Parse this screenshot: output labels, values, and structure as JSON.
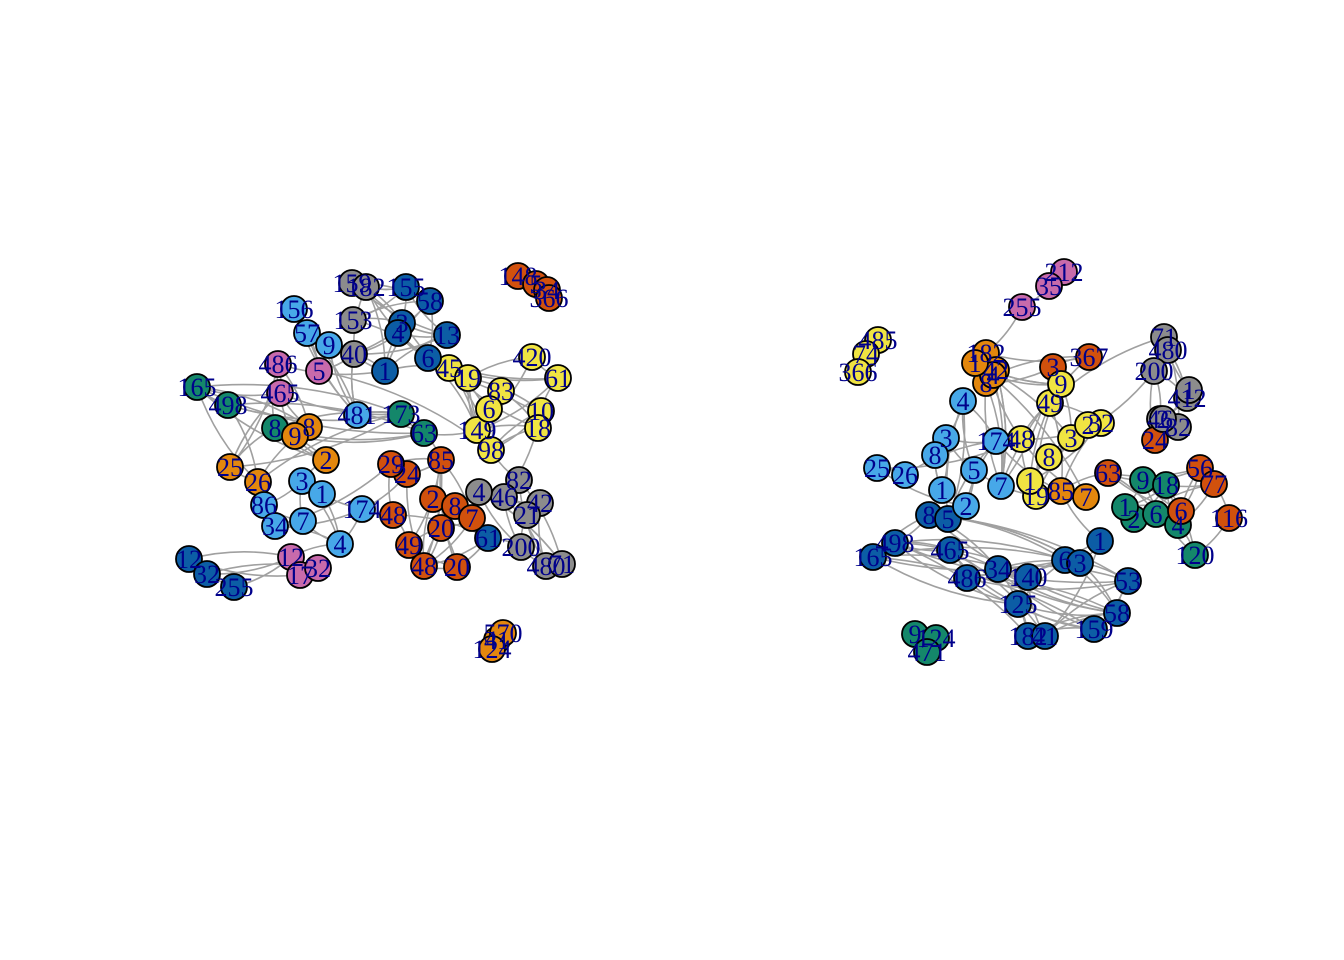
{
  "palette": {
    "dark-blue": "#0c5da5",
    "light-blue": "#47a8e8",
    "gray": "#8c8c8c",
    "orange": "#e3870d",
    "vermilion": "#d1510d",
    "yellow": "#f0e442",
    "green": "#14876a",
    "pink": "#c86aab",
    "edge": "#a0a0a0",
    "label": "#00008b"
  },
  "graphs": [
    {
      "name": "left-network",
      "nodes": [
        {
          "label": "159",
          "color": "gray"
        },
        {
          "label": "182",
          "color": "gray"
        },
        {
          "label": "155",
          "color": "dark-blue"
        },
        {
          "label": "58",
          "color": "dark-blue"
        },
        {
          "label": "156",
          "color": "light-blue"
        },
        {
          "label": "57",
          "color": "light-blue"
        },
        {
          "label": "153",
          "color": "gray"
        },
        {
          "label": "3",
          "color": "dark-blue"
        },
        {
          "label": "13",
          "color": "dark-blue"
        },
        {
          "label": "148",
          "color": "vermilion"
        },
        {
          "label": "5",
          "color": "vermilion"
        },
        {
          "label": "34",
          "color": "vermilion"
        },
        {
          "label": "366",
          "color": "vermilion"
        },
        {
          "label": "420",
          "color": "yellow"
        },
        {
          "label": "61",
          "color": "yellow"
        },
        {
          "label": "486",
          "color": "pink"
        },
        {
          "label": "465",
          "color": "pink"
        },
        {
          "label": "165",
          "color": "green"
        },
        {
          "label": "498",
          "color": "green"
        },
        {
          "label": "481",
          "color": "light-blue"
        },
        {
          "label": "173",
          "color": "green"
        },
        {
          "label": "63",
          "color": "green"
        },
        {
          "label": "45",
          "color": "yellow"
        },
        {
          "label": "149",
          "color": "yellow"
        },
        {
          "label": "98",
          "color": "yellow"
        },
        {
          "label": "10",
          "color": "yellow"
        },
        {
          "label": "18",
          "color": "yellow"
        },
        {
          "label": "85",
          "color": "vermilion"
        },
        {
          "label": "24",
          "color": "vermilion"
        },
        {
          "label": "29",
          "color": "vermilion"
        },
        {
          "label": "82",
          "color": "gray"
        },
        {
          "label": "46",
          "color": "gray"
        },
        {
          "label": "42",
          "color": "gray"
        },
        {
          "label": "21",
          "color": "gray"
        },
        {
          "label": "200",
          "color": "gray"
        },
        {
          "label": "480",
          "color": "gray"
        },
        {
          "label": "71",
          "color": "gray"
        },
        {
          "label": "25",
          "color": "orange"
        },
        {
          "label": "26",
          "color": "orange"
        },
        {
          "label": "86",
          "color": "light-blue"
        },
        {
          "label": "7",
          "color": "light-blue"
        },
        {
          "label": "34",
          "color": "light-blue"
        },
        {
          "label": "174",
          "color": "light-blue"
        },
        {
          "label": "4",
          "color": "light-blue"
        },
        {
          "label": "48",
          "color": "vermilion"
        },
        {
          "label": "49",
          "color": "vermilion"
        },
        {
          "label": "20",
          "color": "vermilion"
        },
        {
          "label": "48",
          "color": "vermilion"
        },
        {
          "label": "20",
          "color": "vermilion"
        },
        {
          "label": "61",
          "color": "dark-blue"
        },
        {
          "label": "12",
          "color": "dark-blue"
        },
        {
          "label": "32",
          "color": "dark-blue"
        },
        {
          "label": "255",
          "color": "dark-blue"
        },
        {
          "label": "12",
          "color": "pink"
        },
        {
          "label": "17",
          "color": "pink"
        },
        {
          "label": "32",
          "color": "pink"
        },
        {
          "label": "41",
          "color": "orange"
        },
        {
          "label": "570",
          "color": "orange"
        },
        {
          "label": "124",
          "color": "orange"
        },
        {
          "label": "40",
          "color": "gray"
        },
        {
          "label": "1",
          "color": "dark-blue"
        },
        {
          "label": "8",
          "color": "green"
        },
        {
          "label": "9",
          "color": "light-blue"
        },
        {
          "label": "5",
          "color": "pink"
        },
        {
          "label": "83",
          "color": "yellow"
        },
        {
          "label": "6",
          "color": "yellow"
        },
        {
          "label": "8",
          "color": "orange"
        },
        {
          "label": "9",
          "color": "orange"
        },
        {
          "label": "2",
          "color": "orange"
        },
        {
          "label": "3",
          "color": "light-blue"
        },
        {
          "label": "1",
          "color": "light-blue"
        },
        {
          "label": "2",
          "color": "vermilion"
        },
        {
          "label": "8",
          "color": "vermilion"
        },
        {
          "label": "7",
          "color": "vermilion"
        },
        {
          "label": "4",
          "color": "dark-blue"
        },
        {
          "label": "6",
          "color": "dark-blue"
        },
        {
          "label": "19",
          "color": "yellow"
        },
        {
          "label": "4",
          "color": "gray"
        }
      ]
    },
    {
      "name": "right-network",
      "nodes": [
        {
          "label": "212",
          "color": "pink"
        },
        {
          "label": "35",
          "color": "pink"
        },
        {
          "label": "255",
          "color": "pink"
        },
        {
          "label": "485",
          "color": "yellow"
        },
        {
          "label": "74",
          "color": "yellow"
        },
        {
          "label": "366",
          "color": "yellow"
        },
        {
          "label": "182",
          "color": "orange"
        },
        {
          "label": "42",
          "color": "orange"
        },
        {
          "label": "367",
          "color": "vermilion"
        },
        {
          "label": "3",
          "color": "vermilion"
        },
        {
          "label": "71",
          "color": "gray"
        },
        {
          "label": "480",
          "color": "gray"
        },
        {
          "label": "200",
          "color": "gray"
        },
        {
          "label": "412",
          "color": "gray"
        },
        {
          "label": "46",
          "color": "gray"
        },
        {
          "label": "82",
          "color": "gray"
        },
        {
          "label": "24",
          "color": "vermilion"
        },
        {
          "label": "63",
          "color": "vermilion"
        },
        {
          "label": "56",
          "color": "vermilion"
        },
        {
          "label": "77",
          "color": "vermilion"
        },
        {
          "label": "116",
          "color": "vermilion"
        },
        {
          "label": "120",
          "color": "green"
        },
        {
          "label": "9",
          "color": "green"
        },
        {
          "label": "18",
          "color": "green"
        },
        {
          "label": "49",
          "color": "yellow"
        },
        {
          "label": "32",
          "color": "yellow"
        },
        {
          "label": "48",
          "color": "yellow"
        },
        {
          "label": "19",
          "color": "yellow"
        },
        {
          "label": "85",
          "color": "orange"
        },
        {
          "label": "7",
          "color": "orange"
        },
        {
          "label": "25",
          "color": "light-blue"
        },
        {
          "label": "26",
          "color": "light-blue"
        },
        {
          "label": "174",
          "color": "light-blue"
        },
        {
          "label": "165",
          "color": "dark-blue"
        },
        {
          "label": "498",
          "color": "dark-blue"
        },
        {
          "label": "465",
          "color": "dark-blue"
        },
        {
          "label": "486",
          "color": "dark-blue"
        },
        {
          "label": "34",
          "color": "dark-blue"
        },
        {
          "label": "140",
          "color": "dark-blue"
        },
        {
          "label": "125",
          "color": "dark-blue"
        },
        {
          "label": "159",
          "color": "dark-blue"
        },
        {
          "label": "182",
          "color": "dark-blue"
        },
        {
          "label": "41",
          "color": "dark-blue"
        },
        {
          "label": "58",
          "color": "dark-blue"
        },
        {
          "label": "53",
          "color": "dark-blue"
        },
        {
          "label": "6",
          "color": "dark-blue"
        },
        {
          "label": "9",
          "color": "green"
        },
        {
          "label": "124",
          "color": "green"
        },
        {
          "label": "471",
          "color": "green"
        },
        {
          "label": "8",
          "color": "dark-blue"
        },
        {
          "label": "5",
          "color": "dark-blue"
        },
        {
          "label": "4",
          "color": "light-blue"
        },
        {
          "label": "3",
          "color": "light-blue"
        },
        {
          "label": "8",
          "color": "light-blue"
        },
        {
          "label": "1",
          "color": "light-blue"
        },
        {
          "label": "2",
          "color": "light-blue"
        },
        {
          "label": "5",
          "color": "light-blue"
        },
        {
          "label": "7",
          "color": "light-blue"
        },
        {
          "label": "8",
          "color": "orange"
        },
        {
          "label": "4",
          "color": "orange"
        },
        {
          "label": "1",
          "color": "orange"
        },
        {
          "label": "9",
          "color": "yellow"
        },
        {
          "label": "1",
          "color": "yellow"
        },
        {
          "label": "8",
          "color": "yellow"
        },
        {
          "label": "3",
          "color": "yellow"
        },
        {
          "label": "2",
          "color": "yellow"
        },
        {
          "label": "3",
          "color": "dark-blue"
        },
        {
          "label": "1",
          "color": "dark-blue"
        },
        {
          "label": "2",
          "color": "green"
        },
        {
          "label": "6",
          "color": "green"
        },
        {
          "label": "4",
          "color": "green"
        },
        {
          "label": "1",
          "color": "green"
        },
        {
          "label": "6",
          "color": "vermilion"
        },
        {
          "label": "2",
          "color": "gray"
        },
        {
          "label": "1",
          "color": "gray"
        }
      ]
    }
  ]
}
